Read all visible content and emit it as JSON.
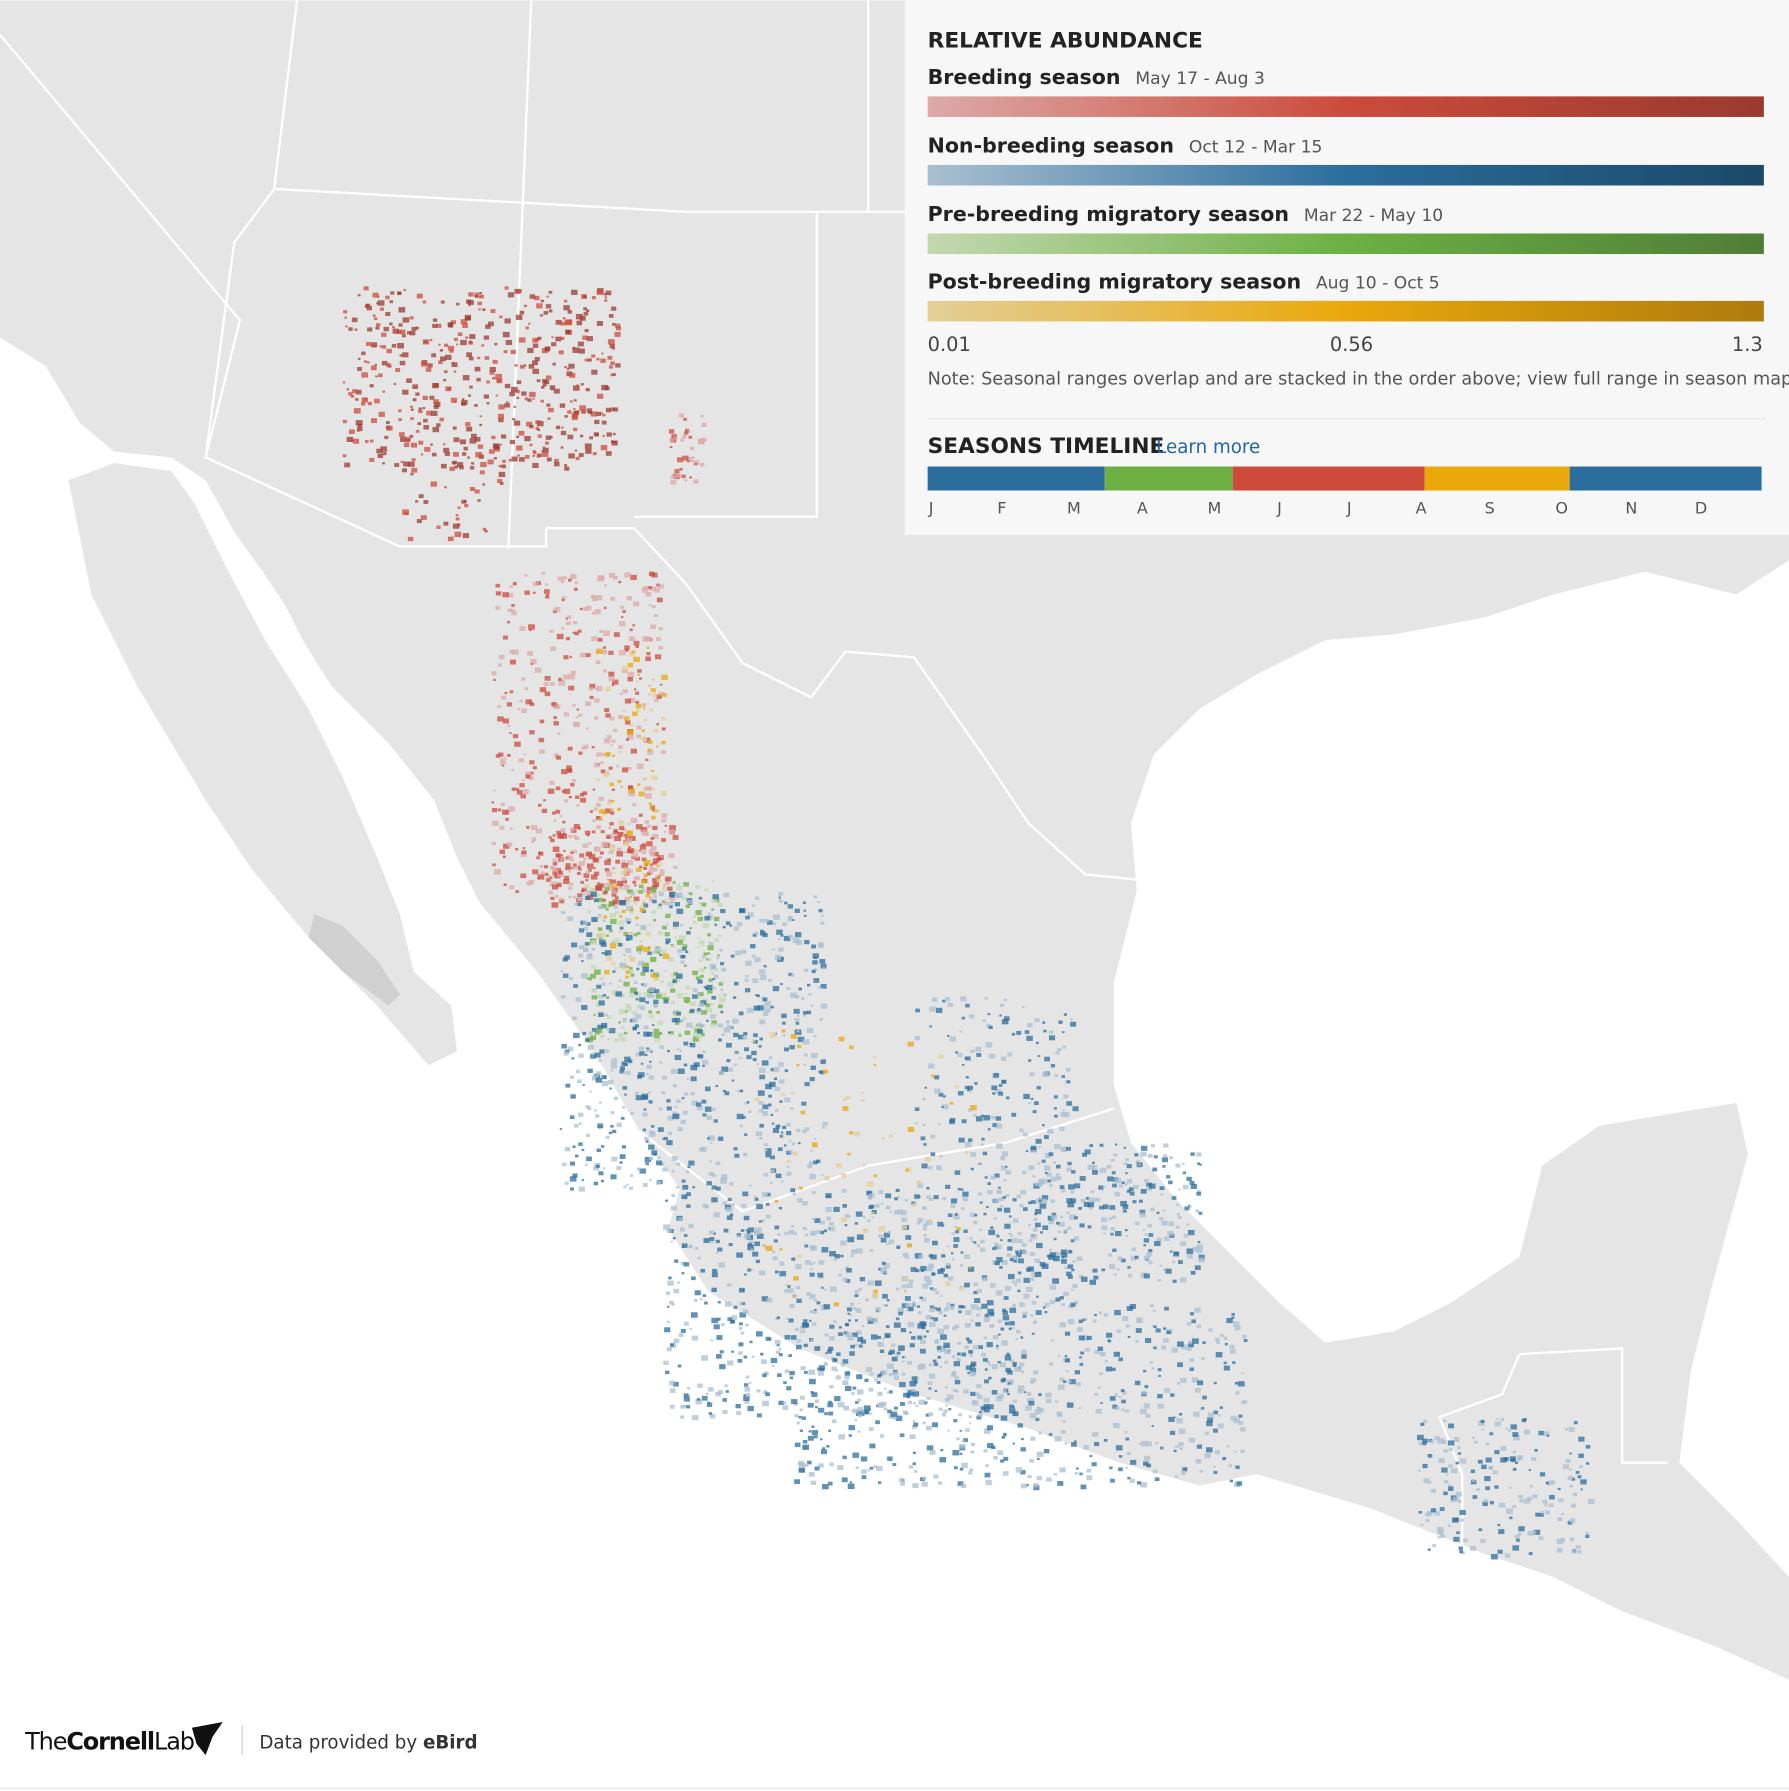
{
  "legend": {
    "title": "RELATIVE ABUNDANCE",
    "seasons": [
      {
        "name": "Breeding season",
        "dates": "May 17 - Aug 3",
        "colors": [
          "#dcaaa8",
          "#cc4b3b",
          "#9b3a2f"
        ]
      },
      {
        "name": "Non-breeding season",
        "dates": "Oct 12 - Mar 15",
        "colors": [
          "#a9bfd0",
          "#2b6e9d",
          "#1b4968"
        ]
      },
      {
        "name": "Pre-breeding migratory season",
        "dates": "Mar 22 - May 10",
        "colors": [
          "#c3d8b0",
          "#6cb043",
          "#4f7e37"
        ]
      },
      {
        "name": "Post-breeding migratory season",
        "dates": "Aug 10 - Oct 5",
        "colors": [
          "#e3cf98",
          "#eaa80b",
          "#ae7b0d"
        ]
      }
    ],
    "scale": [
      0.01,
      0.56,
      1.3
    ],
    "note": "Note: Seasonal ranges overlap and are stacked in the order above; view full range in season maps.",
    "timeline": {
      "title": "SEASONS TIMELINE",
      "link": "Learn more",
      "months": [
        "J",
        "F",
        "M",
        "A",
        "M",
        "J",
        "J",
        "A",
        "S",
        "O",
        "N",
        "D"
      ]
    }
  },
  "footer": {
    "brand": [
      "The",
      "Cornell",
      "Lab"
    ],
    "credit": "Data provided by",
    "source": "eBird"
  }
}
